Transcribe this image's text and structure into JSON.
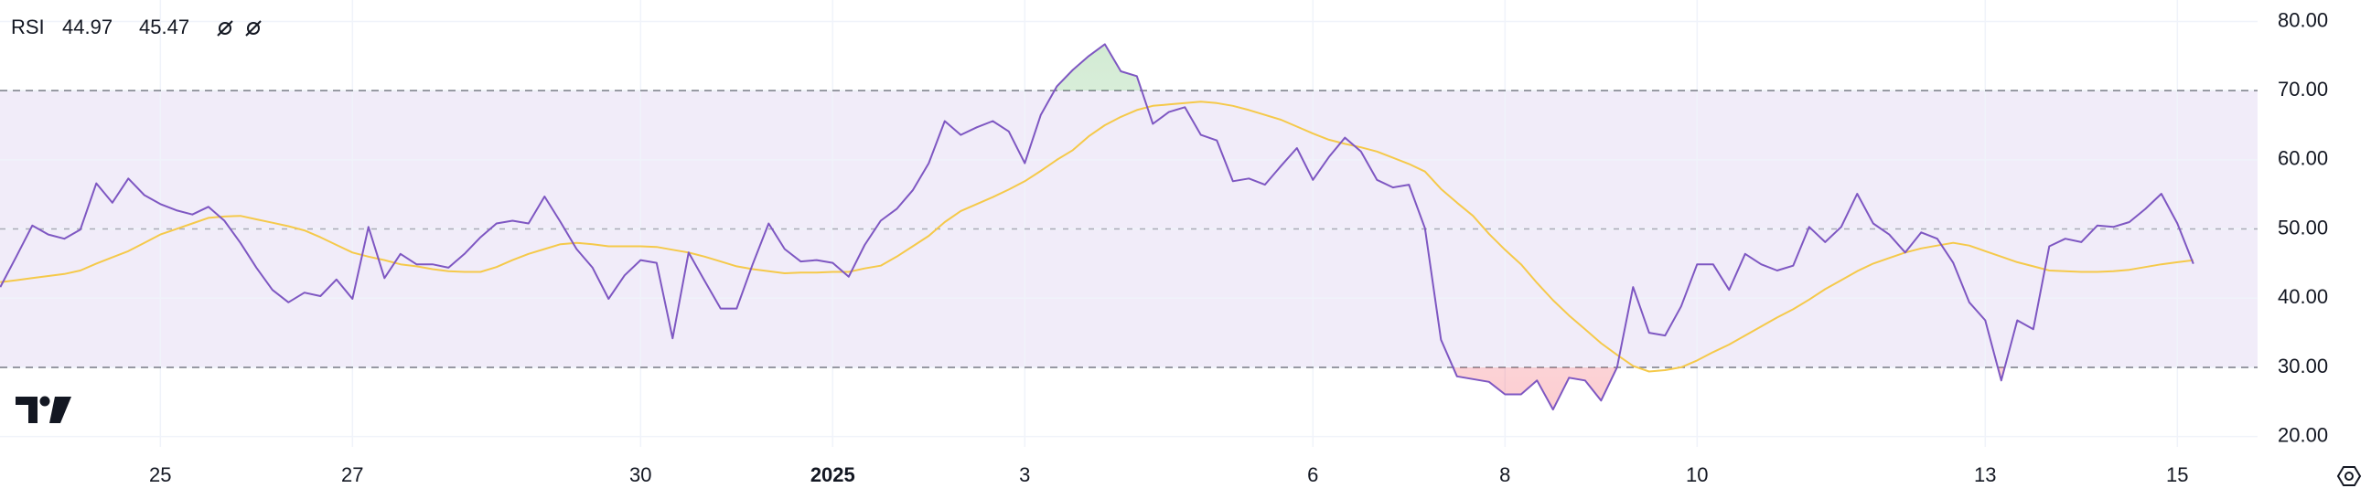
{
  "chart_data": {
    "type": "line",
    "title": "RSI",
    "categories": [
      null,
      null,
      null,
      null,
      null,
      null,
      null,
      null,
      null,
      null,
      "25",
      null,
      null,
      null,
      null,
      null,
      null,
      null,
      null,
      null,
      null,
      null,
      "27",
      null,
      null,
      null,
      null,
      null,
      null,
      null,
      null,
      null,
      null,
      null,
      null,
      null,
      null,
      null,
      null,
      null,
      "30",
      null,
      null,
      null,
      null,
      null,
      null,
      null,
      null,
      null,
      null,
      null,
      "2025",
      null,
      null,
      null,
      null,
      null,
      null,
      null,
      null,
      null,
      null,
      null,
      "3",
      null,
      null,
      null,
      null,
      null,
      null,
      null,
      null,
      null,
      null,
      null,
      null,
      null,
      null,
      null,
      null,
      null,
      "6",
      null,
      null,
      null,
      null,
      null,
      null,
      null,
      null,
      null,
      null,
      null,
      "8",
      null,
      null,
      null,
      null,
      null,
      null,
      null,
      null,
      null,
      null,
      null,
      "10",
      null,
      null,
      null,
      null,
      null,
      null,
      null,
      null,
      null,
      null,
      null,
      null,
      null,
      null,
      null,
      null,
      null,
      "13",
      null,
      null,
      null,
      null,
      null,
      null,
      null,
      null,
      null,
      null,
      null,
      "15",
      null
    ],
    "series": [
      {
        "color": "#7e57c2",
        "last_label": "44.97",
        "values": [
          41.6,
          46,
          50.5,
          49.2,
          48.6,
          49.9,
          56.6,
          53.8,
          57.3,
          54.9,
          53.6,
          52.7,
          52.1,
          53.2,
          51.2,
          48,
          44.4,
          41.2,
          39.4,
          40.8,
          40.3,
          42.7,
          39.9,
          50.3,
          42.9,
          46.4,
          44.9,
          44.9,
          44.4,
          46.4,
          48.8,
          50.8,
          51.2,
          50.8,
          54.7,
          51,
          47.1,
          44.4,
          39.9,
          43.3,
          45.5,
          45.1,
          34.2,
          46.6,
          42.5,
          38.5,
          38.5,
          44.9,
          50.8,
          47.1,
          45.3,
          45.5,
          45.1,
          43.1,
          47.7,
          51.2,
          52.9,
          55.6,
          59.5,
          65.6,
          63.6,
          64.7,
          65.6,
          64.1,
          59.5,
          66.5,
          70.6,
          73,
          75,
          76.7,
          72.8,
          72.1,
          65.2,
          66.9,
          67.6,
          63.6,
          62.8,
          56.9,
          57.3,
          56.4,
          59.1,
          61.7,
          57.1,
          60.4,
          63.2,
          61.2,
          57.1,
          56,
          56.4,
          50.1,
          34,
          28.7,
          28.3,
          27.9,
          26.1,
          26.1,
          28.1,
          23.9,
          28.5,
          28.1,
          25.2,
          30,
          41.6,
          35,
          34.6,
          38.8,
          44.9,
          44.9,
          41.2,
          46.4,
          44.9,
          44,
          44.7,
          50.3,
          48.1,
          50.3,
          55.1,
          50.8,
          49.2,
          46.6,
          49.5,
          48.6,
          45.1,
          39.4,
          36.8,
          28.1,
          36.8,
          35.5,
          47.5,
          48.6,
          48.1,
          50.5,
          50.3,
          51,
          52.9,
          55.1,
          50.8,
          44.97
        ]
      },
      {
        "color": "#f5c94a",
        "last_label": "45.47",
        "values": [
          42.3,
          42.6,
          42.9,
          43.2,
          43.5,
          44.0,
          45.0,
          45.9,
          46.8,
          48.0,
          49.2,
          50.0,
          50.8,
          51.6,
          51.8,
          51.9,
          51.4,
          50.9,
          50.4,
          49.8,
          48.8,
          47.7,
          46.6,
          46.0,
          45.5,
          44.9,
          44.6,
          44.2,
          43.9,
          43.8,
          43.8,
          44.5,
          45.5,
          46.4,
          47.1,
          47.8,
          48.0,
          47.8,
          47.5,
          47.5,
          47.5,
          47.4,
          47.0,
          46.6,
          46.0,
          45.3,
          44.6,
          44.2,
          43.9,
          43.6,
          43.7,
          43.7,
          43.8,
          43.8,
          44.3,
          44.7,
          46.0,
          47.5,
          49.0,
          51.0,
          52.6,
          53.6,
          54.6,
          55.7,
          56.9,
          58.4,
          60.0,
          61.4,
          63.4,
          65.0,
          66.2,
          67.2,
          67.8,
          68.0,
          68.2,
          68.4,
          68.2,
          67.8,
          67.2,
          66.5,
          65.8,
          64.8,
          63.8,
          62.9,
          62.3,
          61.8,
          61.2,
          60.3,
          59.4,
          58.3,
          55.8,
          53.8,
          51.9,
          49.3,
          47.0,
          44.9,
          42.2,
          39.7,
          37.5,
          35.5,
          33.5,
          31.8,
          30.2,
          29.4,
          29.6,
          30.0,
          31.0,
          32.2,
          33.3,
          34.6,
          35.9,
          37.2,
          38.4,
          39.8,
          41.3,
          42.6,
          43.9,
          45.0,
          45.8,
          46.6,
          47.2,
          47.6,
          48.0,
          47.6,
          46.8,
          46.0,
          45.2,
          44.6,
          44.0,
          43.9,
          43.8,
          43.8,
          43.9,
          44.1,
          44.5,
          44.9,
          45.2,
          45.47
        ]
      }
    ],
    "ylim": [
      18.5,
      83.1
    ],
    "yticks": [
      {
        "value": 80,
        "label": "80.00"
      },
      {
        "value": 70,
        "label": "70.00"
      },
      {
        "value": 60,
        "label": "60.00"
      },
      {
        "value": 50,
        "label": "50.00"
      },
      {
        "value": 40,
        "label": "40.00"
      },
      {
        "value": 30,
        "label": "30.00"
      },
      {
        "value": 20,
        "label": "20.00"
      }
    ],
    "bands": {
      "upper": 70,
      "middle": 50,
      "lower": 30
    },
    "band_fill": "#f1ecf9",
    "grid": true
  }
}
